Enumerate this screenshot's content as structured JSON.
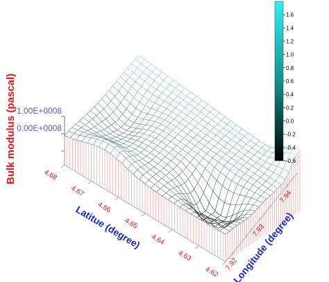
{
  "chart_data": {
    "type": "surface3d",
    "title": "",
    "zlabel": "Bulk modulus (pascal)",
    "ylabel": "Latitue (degree)",
    "xlabel": "Longitude (degree)",
    "z_ticks": [
      "1.00E+0008",
      "0.00E+0008"
    ],
    "latitude_ticks": [
      "4.68",
      "4.67",
      "4.66",
      "4.65",
      "4.64",
      "4.63",
      "4.62"
    ],
    "longitude_ticks": [
      "7.92",
      "7.93",
      "7.94"
    ],
    "colorbar": {
      "ticks": [
        "1.6",
        "1.4",
        "1.2",
        "1.0",
        "0.8",
        "0.6",
        "0.4",
        "0.2",
        "0.0",
        "-0.2",
        "-0.4",
        "-0.6"
      ],
      "range": [
        -0.6,
        1.8
      ],
      "color_low": "#000000",
      "color_high": "#2ef2f2"
    },
    "colors": {
      "axis_title_z": "#e8141b",
      "axis_title_xy": "#1428d8",
      "tick_labels": "#e8141b",
      "z_tick_labels": "#5a5ab4",
      "curtain": "#e8141b"
    }
  }
}
